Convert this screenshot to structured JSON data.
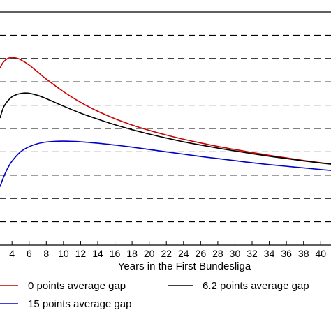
{
  "chart_data": {
    "type": "line",
    "xlabel": "Years in the First Bundesliga",
    "xlim": [
      2.6,
      41.2
    ],
    "ylim": [
      0,
      10
    ],
    "x_ticks": [
      4,
      6,
      8,
      10,
      12,
      14,
      16,
      18,
      20,
      22,
      24,
      26,
      28,
      30,
      32,
      34,
      36,
      38,
      40
    ],
    "y_gridlines": [
      1,
      2,
      3,
      4,
      5,
      6,
      7,
      8,
      9
    ],
    "grid": "horizontal-dashed",
    "legend_position": "bottom",
    "series": [
      {
        "name": "0 points average gap",
        "color": "#cc0000",
        "x": [
          2.6,
          3,
          3.5,
          4,
          4.5,
          5,
          6,
          7,
          8,
          10,
          12,
          14,
          16,
          18,
          20,
          22,
          24,
          26,
          28,
          30,
          32,
          34,
          36,
          38,
          40,
          41.2
        ],
        "y": [
          7.6,
          7.85,
          8.0,
          8.05,
          8.02,
          7.95,
          7.72,
          7.42,
          7.12,
          6.58,
          6.12,
          5.74,
          5.42,
          5.15,
          4.92,
          4.72,
          4.54,
          4.38,
          4.23,
          4.1,
          3.97,
          3.85,
          3.74,
          3.63,
          3.53,
          3.48
        ]
      },
      {
        "name": "6.2 points average gap",
        "color": "#000000",
        "x": [
          2.6,
          3,
          3.5,
          4,
          4.5,
          5,
          5.5,
          6,
          7,
          8,
          10,
          12,
          14,
          16,
          18,
          20,
          22,
          24,
          26,
          28,
          30,
          32,
          34,
          36,
          38,
          40,
          41.2
        ],
        "y": [
          5.45,
          5.9,
          6.18,
          6.36,
          6.45,
          6.5,
          6.52,
          6.51,
          6.42,
          6.28,
          5.96,
          5.66,
          5.4,
          5.16,
          4.95,
          4.76,
          4.59,
          4.43,
          4.29,
          4.16,
          4.04,
          3.92,
          3.81,
          3.71,
          3.61,
          3.52,
          3.47
        ]
      },
      {
        "name": "15 points average gap",
        "color": "#0000cc",
        "x": [
          2.6,
          3,
          3.5,
          4,
          5,
          6,
          7,
          8,
          9,
          10,
          11,
          12,
          14,
          16,
          18,
          20,
          22,
          24,
          26,
          28,
          30,
          32,
          34,
          36,
          38,
          40,
          41.2
        ],
        "y": [
          2.5,
          2.9,
          3.3,
          3.6,
          4.0,
          4.22,
          4.35,
          4.42,
          4.45,
          4.46,
          4.45,
          4.43,
          4.37,
          4.29,
          4.2,
          4.1,
          4.0,
          3.9,
          3.8,
          3.71,
          3.62,
          3.53,
          3.45,
          3.38,
          3.31,
          3.24,
          3.2
        ]
      }
    ]
  }
}
